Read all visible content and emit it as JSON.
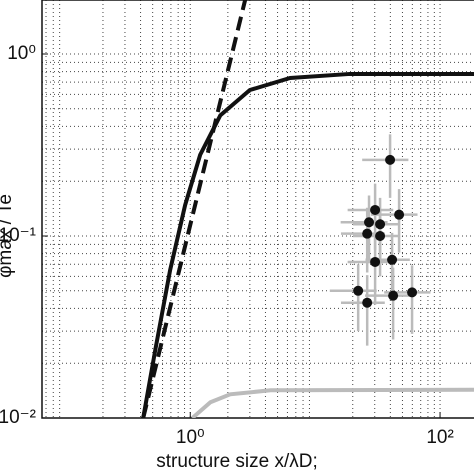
{
  "chart_data": {
    "type": "line",
    "xlabel": "structure size x/λD;",
    "ylabel": "φmax / Te",
    "xlog": true,
    "ylog": true,
    "grid": true,
    "xlim": [
      0.065,
      187
    ],
    "ylim": [
      0.01,
      1.98
    ],
    "xticks": [
      {
        "value": 1,
        "label": "10⁰"
      },
      {
        "value": 100,
        "label": "10²"
      }
    ],
    "yticks": [
      {
        "value": 0.01,
        "label": "10⁻²"
      },
      {
        "value": 0.1,
        "label": "10⁻¹"
      },
      {
        "value": 1,
        "label": "10⁰"
      }
    ],
    "series": [
      {
        "color": "#111111",
        "dash": false,
        "x": [
          0.42,
          0.525,
          0.69,
          0.91,
          1.2,
          1.74,
          3.0,
          6.3,
          19,
          187
        ],
        "values": [
          0.01,
          0.0237,
          0.065,
          0.148,
          0.279,
          0.46,
          0.634,
          0.738,
          0.777,
          0.777
        ]
      },
      {
        "color": "#111111",
        "dash": true,
        "x": [
          0.42,
          1.0,
          2.75
        ],
        "values": [
          0.01,
          0.115,
          1.98
        ]
      },
      {
        "color": "#bbbbbb",
        "dash": false,
        "x": [
          1.04,
          1.45,
          2.09,
          4.4,
          187
        ],
        "values": [
          0.01,
          0.0122,
          0.0135,
          0.0142,
          0.0143
        ]
      },
      {
        "color": "#111111",
        "errcolor": "#bbbbbb",
        "scatter": true,
        "x": [
          39.8,
          30.2,
          27.0,
          33.1,
          47,
          26.1,
          30.2,
          41.3,
          22.1,
          26.1,
          42.1,
          59.7,
          33.1
        ],
        "values": [
          0.262,
          0.139,
          0.119,
          0.116,
          0.131,
          0.103,
          0.072,
          0.074,
          0.05,
          0.043,
          0.047,
          0.049,
          0.1
        ],
        "xerr": [
          16,
          12,
          11,
          13,
          19,
          10,
          12,
          16,
          9,
          10,
          17,
          24,
          13
        ],
        "yerr": [
          0.1,
          0.055,
          0.048,
          0.046,
          0.05,
          0.04,
          0.03,
          0.03,
          0.02,
          0.018,
          0.02,
          0.02,
          0.04
        ]
      }
    ]
  }
}
